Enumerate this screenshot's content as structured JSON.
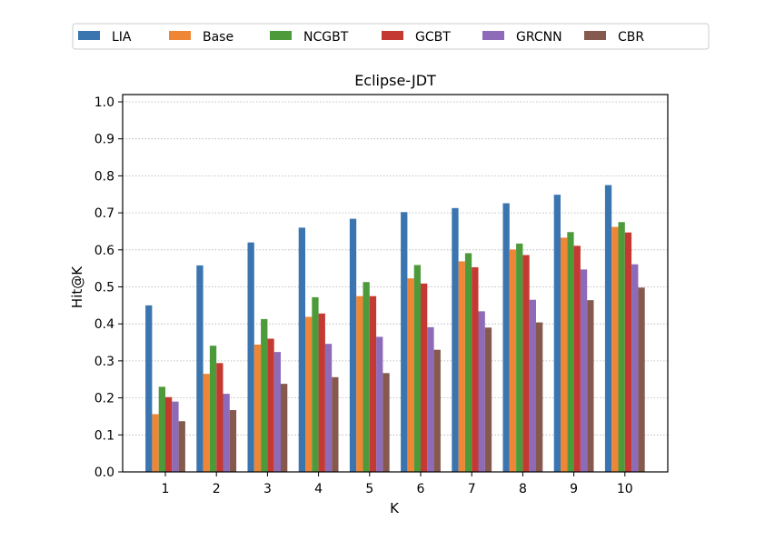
{
  "chart_data": {
    "type": "bar",
    "title": "Eclipse-JDT",
    "xlabel": "K",
    "ylabel": "Hit@K",
    "ylim": [
      0.0,
      1.02
    ],
    "yticks": [
      "0.0",
      "0.1",
      "0.2",
      "0.3",
      "0.4",
      "0.5",
      "0.6",
      "0.7",
      "0.8",
      "0.9",
      "1.0"
    ],
    "ytick_values": [
      0.0,
      0.1,
      0.2,
      0.3,
      0.4,
      0.5,
      0.6,
      0.7,
      0.8,
      0.9,
      1.0
    ],
    "grid": "horizontal-dotted",
    "legend_position": "top-center-outside",
    "categories": [
      "1",
      "2",
      "3",
      "4",
      "5",
      "6",
      "7",
      "8",
      "9",
      "10"
    ],
    "series": [
      {
        "name": "LIA",
        "color": "#3a75b0",
        "values": [
          0.45,
          0.558,
          0.62,
          0.66,
          0.684,
          0.702,
          0.713,
          0.726,
          0.749,
          0.775
        ]
      },
      {
        "name": "Base",
        "color": "#ef8636",
        "values": [
          0.156,
          0.265,
          0.344,
          0.419,
          0.475,
          0.523,
          0.569,
          0.601,
          0.633,
          0.662
        ]
      },
      {
        "name": "NCGBT",
        "color": "#4d9a3b",
        "values": [
          0.23,
          0.341,
          0.413,
          0.472,
          0.513,
          0.559,
          0.591,
          0.617,
          0.648,
          0.675
        ]
      },
      {
        "name": "GCBT",
        "color": "#c43932",
        "values": [
          0.202,
          0.294,
          0.36,
          0.428,
          0.475,
          0.509,
          0.553,
          0.586,
          0.611,
          0.647
        ]
      },
      {
        "name": "GRCNN",
        "color": "#8d6bb8",
        "values": [
          0.19,
          0.211,
          0.324,
          0.346,
          0.365,
          0.391,
          0.434,
          0.465,
          0.547,
          0.561
        ]
      },
      {
        "name": "CBR",
        "color": "#85594e",
        "values": [
          0.137,
          0.167,
          0.238,
          0.256,
          0.267,
          0.33,
          0.39,
          0.404,
          0.464,
          0.498
        ]
      }
    ]
  }
}
